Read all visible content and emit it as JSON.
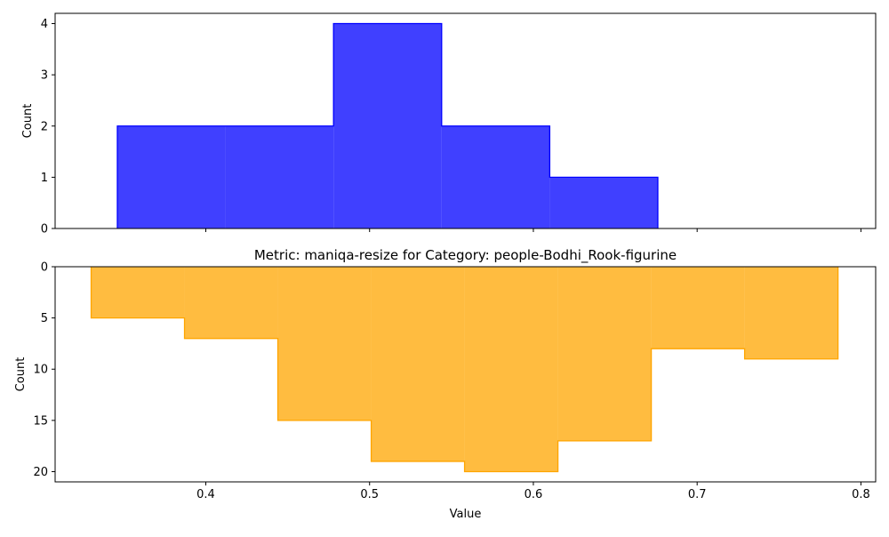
{
  "chart_data": [
    {
      "type": "histogram",
      "title": "",
      "xlabel": "",
      "ylabel": "Count",
      "xlim": [
        0.308,
        0.809
      ],
      "ylim": [
        0,
        4.2
      ],
      "yticks": [
        0,
        1,
        2,
        3,
        4
      ],
      "xticks": [
        0.4,
        0.5,
        0.6,
        0.7,
        0.8
      ],
      "show_xtick_labels": false,
      "inverted_y": false,
      "color": "#0000ff",
      "bin_edges": [
        0.346,
        0.412,
        0.478,
        0.544,
        0.61,
        0.676
      ],
      "counts": [
        2,
        2,
        4,
        2,
        1
      ]
    },
    {
      "type": "histogram",
      "title": "Metric: maniqa-resize for Category: people-Bodhi_Rook-figurine",
      "xlabel": "Value",
      "ylabel": "Count",
      "xlim": [
        0.308,
        0.809
      ],
      "ylim": [
        21,
        0
      ],
      "yticks": [
        0,
        5,
        10,
        15,
        20
      ],
      "xticks": [
        0.4,
        0.5,
        0.6,
        0.7,
        0.8
      ],
      "xtick_labels": [
        "0.4",
        "0.5",
        "0.6",
        "0.7",
        "0.8"
      ],
      "show_xtick_labels": true,
      "inverted_y": true,
      "color": "#ffa500",
      "bin_edges": [
        0.33,
        0.387,
        0.444,
        0.501,
        0.558,
        0.615,
        0.672,
        0.729,
        0.786
      ],
      "counts": [
        5,
        7,
        15,
        19,
        20,
        17,
        8,
        9
      ]
    }
  ]
}
